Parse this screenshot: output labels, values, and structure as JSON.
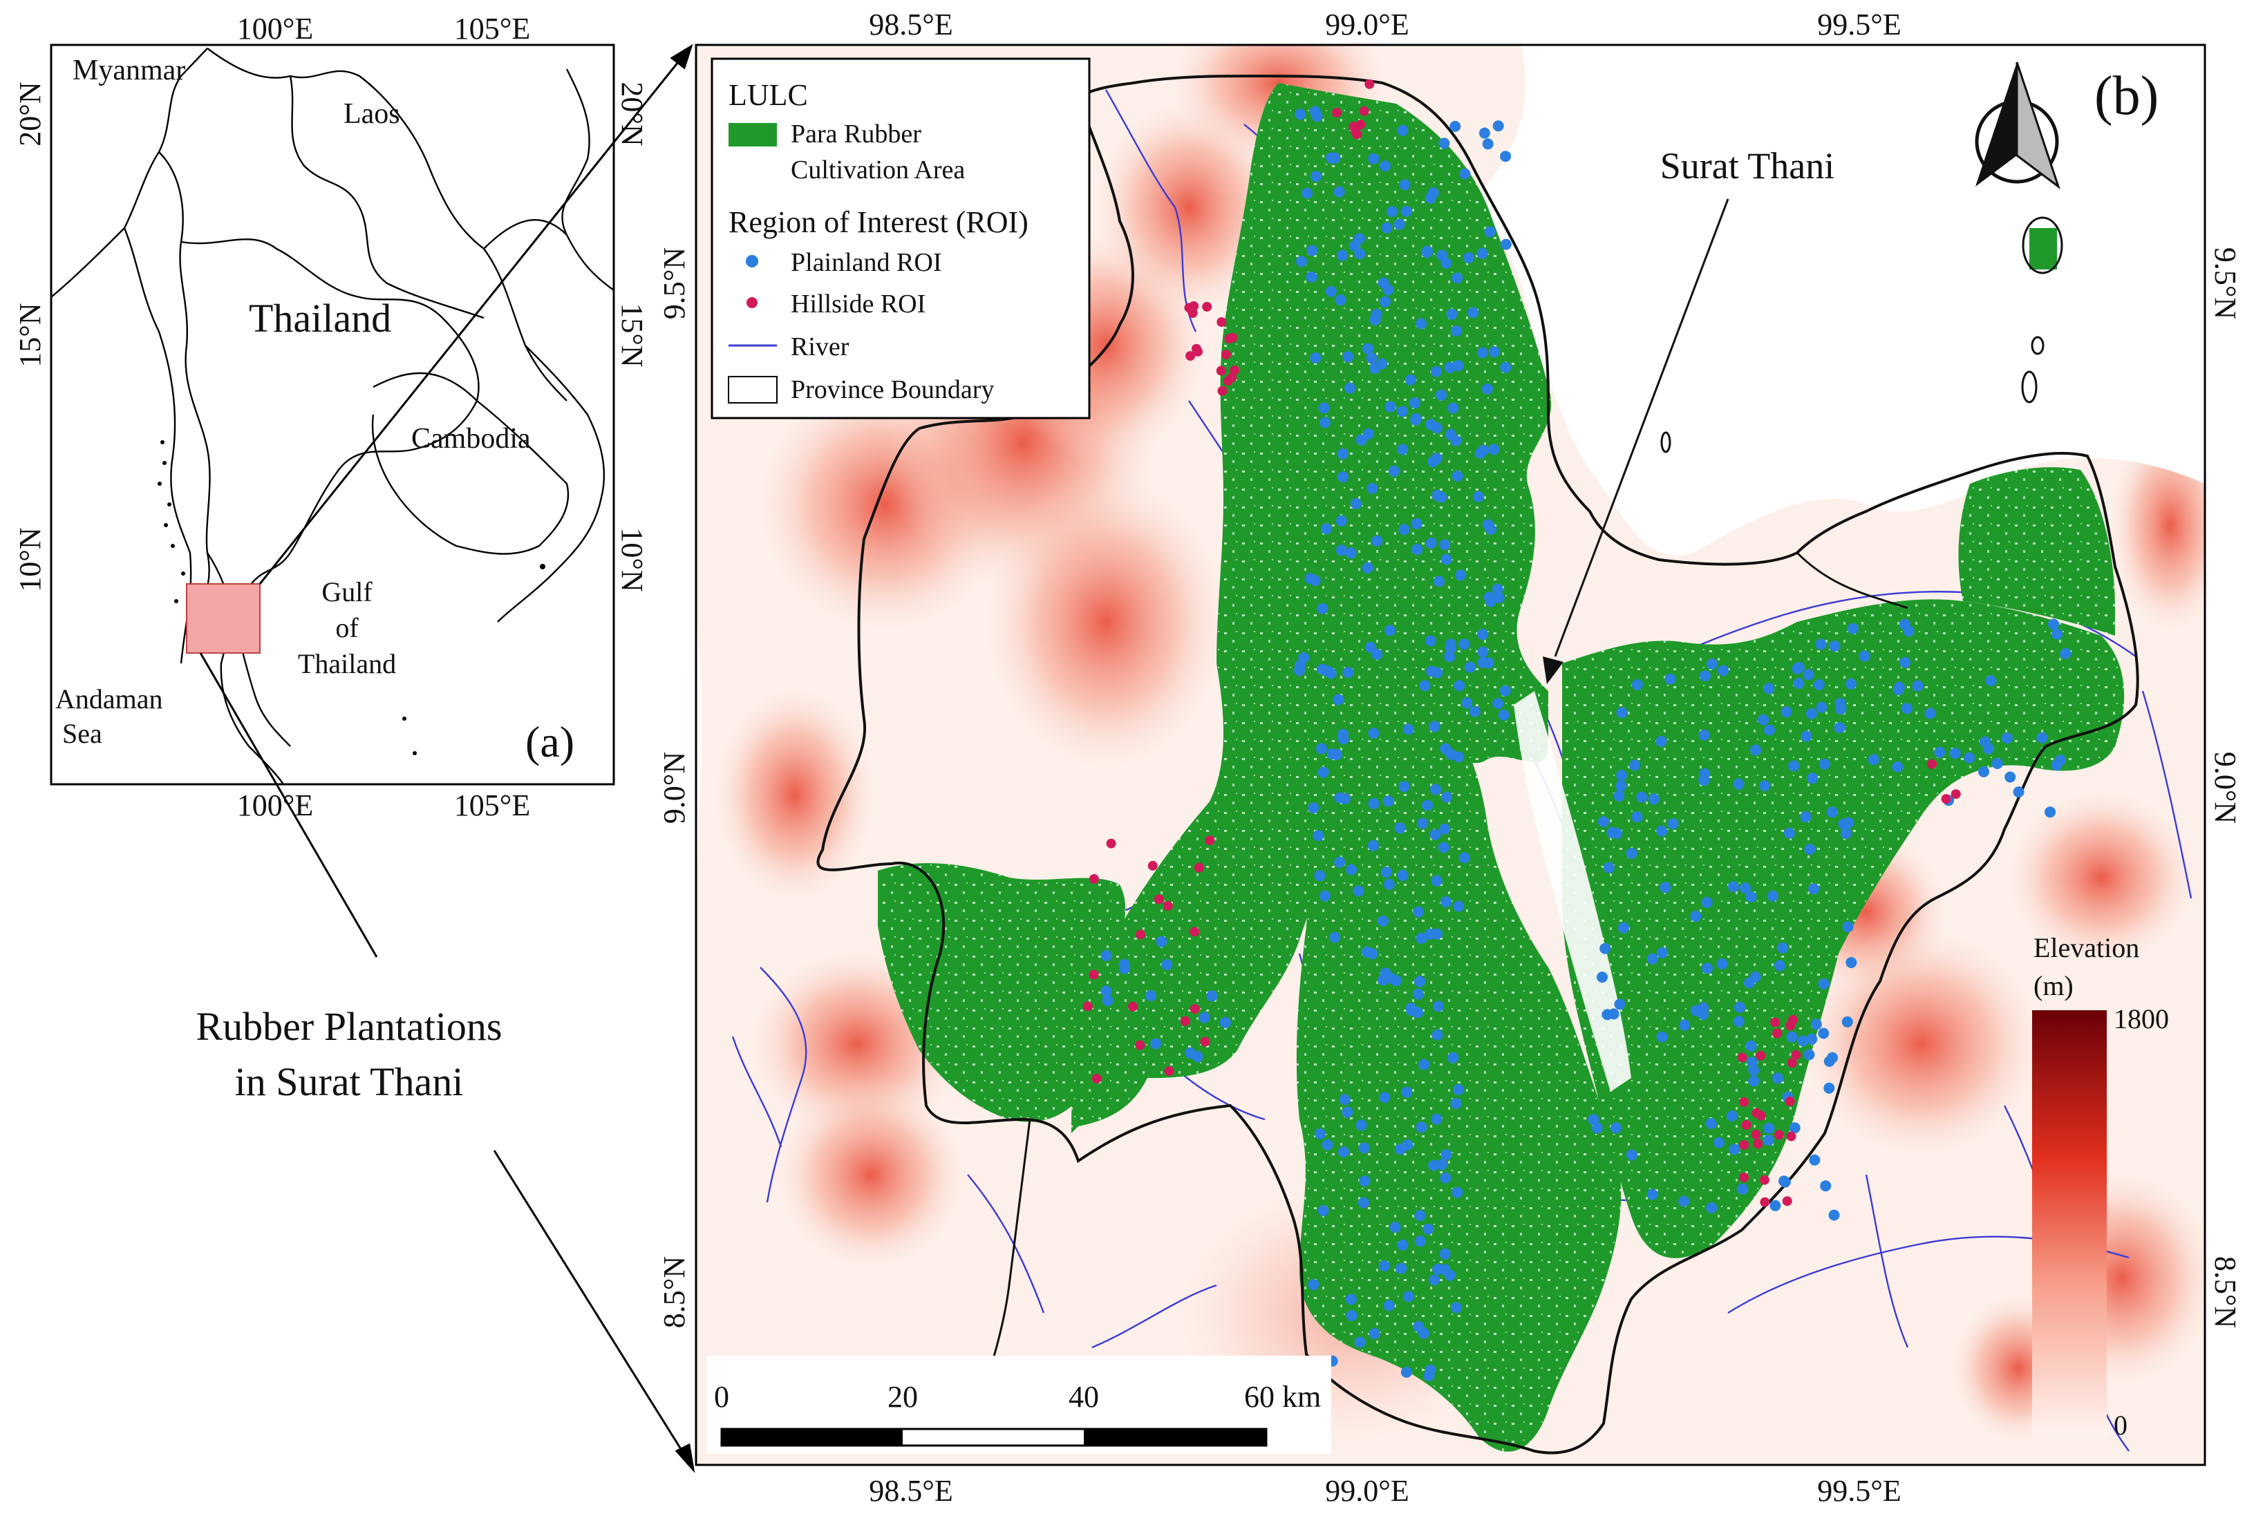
{
  "panel_a": {
    "tag": "(a)",
    "countries": [
      "Myanmar",
      "Laos",
      "Thailand",
      "Cambodia"
    ],
    "water": {
      "gulf": [
        "Gulf",
        "of",
        "Thailand"
      ],
      "sea": [
        "Andaman",
        "Sea"
      ]
    },
    "lon_ticks": [
      "100°E",
      "105°E"
    ],
    "lat_ticks": [
      "20°N",
      "15°N",
      "10°N"
    ],
    "highlight_color": "#f4a6a6"
  },
  "callout": {
    "lines": [
      "Rubber Plantations",
      "in Surat Thani"
    ]
  },
  "panel_b": {
    "tag": "(b)",
    "city_label": "Surat Thani",
    "lon_ticks": [
      "98.5°E",
      "99.0°E",
      "99.5°E"
    ],
    "lat_ticks": [
      "9.5°N",
      "9.0°N",
      "8.5°N"
    ],
    "legend": {
      "lulc_title": "LULC",
      "rubber_label": [
        "Para Rubber",
        "Cultivation Area"
      ],
      "roi_title": "Region of Interest (ROI)",
      "plainland": "Plainland ROI",
      "hillside": "Hillside ROI",
      "river": "River",
      "boundary": "Province Boundary"
    },
    "elevation": {
      "title": "Elevation",
      "unit": "(m)",
      "max": "1800",
      "min": "0"
    },
    "scalebar": {
      "labels": [
        "0",
        "20",
        "40",
        "60 km"
      ]
    },
    "colors": {
      "rubber": "#1f9a2a",
      "plainland": "#2b7fe0",
      "hillside": "#d21a5a",
      "river": "#3b3bd6",
      "elev_low": "#fff4f0",
      "elev_high": "#6b0008"
    }
  }
}
